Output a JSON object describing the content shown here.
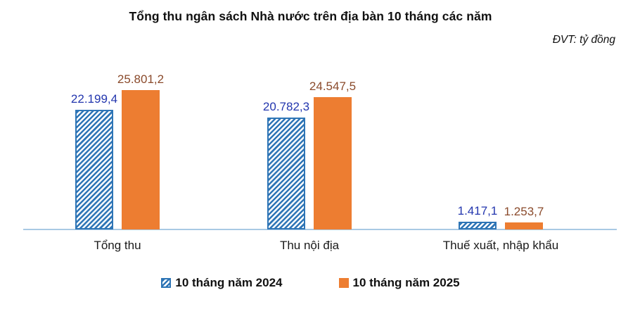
{
  "chart_data": {
    "type": "bar",
    "title": "Tổng thu ngân sách Nhà nước trên địa bàn 10 tháng các năm",
    "unit_label": "ĐVT: tỷ đồng",
    "categories": [
      "Tổng thu",
      "Thu nội địa",
      "Thuế xuất, nhập khẩu"
    ],
    "series": [
      {
        "name": "10 tháng năm 2024",
        "values": [
          22199.4,
          20782.3,
          1417.1
        ],
        "value_labels": [
          "22.199,4",
          "20.782,3",
          "1.417,1"
        ],
        "fill_style": "diagonal-hatch",
        "color": "#2E75B6",
        "label_color": "#2336AE"
      },
      {
        "name": "10 tháng năm 2025",
        "values": [
          25801.2,
          24547.5,
          1253.7
        ],
        "value_labels": [
          "25.801,2",
          "24.547,5",
          "1.253,7"
        ],
        "fill_style": "solid",
        "color": "#ED7D31",
        "label_color": "#8A4A2B"
      }
    ],
    "ylim": [
      0,
      26000
    ],
    "ylabel": "",
    "xlabel": "",
    "gridlines": false,
    "y_axis_visible": false,
    "axis_line_color": "#A9C9E4",
    "legend_position": "bottom",
    "data_labels_visible": true
  }
}
